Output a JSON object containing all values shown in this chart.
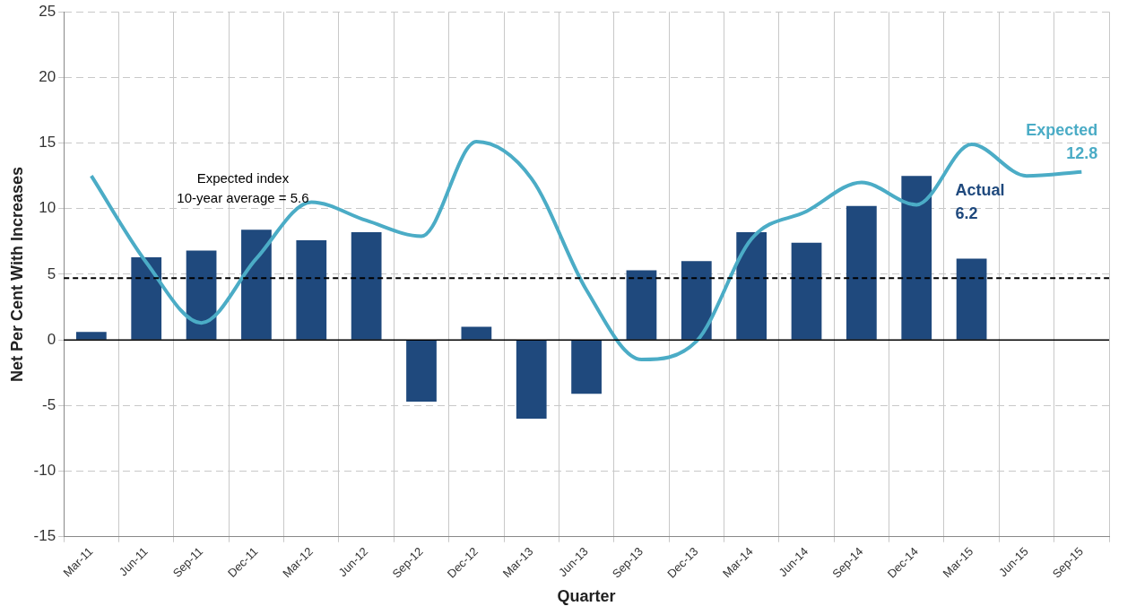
{
  "chart_data": {
    "type": "bar",
    "xlabel": "Quarter",
    "ylabel": "Net Per Cent With Increases",
    "categories": [
      "Mar-11",
      "Jun-11",
      "Sep-11",
      "Dec-11",
      "Mar-12",
      "Jun-12",
      "Sep-12",
      "Dec-12",
      "Mar-13",
      "Jun-13",
      "Sep-13",
      "Dec-13",
      "Mar-14",
      "Jun-14",
      "Sep-14",
      "Dec-14",
      "Mar-15",
      "Jun-15",
      "Sep-15"
    ],
    "series": [
      {
        "color": "#1f497d",
        "values": [
          0.6,
          6.3,
          6.8,
          8.4,
          7.6,
          8.2,
          -4.7,
          1.0,
          -6.0,
          -4.1,
          5.3,
          6.0,
          8.2,
          7.4,
          10.2,
          12.5,
          6.2,
          null,
          null
        ]
      },
      {
        "type": "line",
        "color": "#4bacc6",
        "values": [
          12.5,
          5.9,
          1.3,
          6.2,
          10.5,
          9.1,
          7.9,
          15.1,
          12.3,
          3.8,
          -1.5,
          -0.1,
          7.7,
          9.8,
          12.0,
          10.3,
          14.9,
          12.5,
          12.8
        ]
      }
    ],
    "ylim": [
      -15,
      25
    ],
    "yticks": [
      -15,
      -10,
      -5,
      0,
      5,
      10,
      15,
      20,
      25
    ],
    "grid": true,
    "legend": false,
    "marker": "none",
    "line_style": "solid",
    "ref_lines": [
      {
        "axis": "y",
        "value": 4.7,
        "color": "#000000",
        "line_style": "dashed"
      },
      {
        "axis": "y",
        "value": 0,
        "color": "#000000",
        "line_style": "solid"
      }
    ],
    "annotations": [
      "Expected index\n10-year average = 5.6",
      {
        "text": "Expected\n12.8",
        "x": "Sep-15",
        "y": 12.8
      },
      {
        "text": "Actual\n6.2",
        "x": "Mar-15",
        "y": 6.2
      }
    ]
  }
}
